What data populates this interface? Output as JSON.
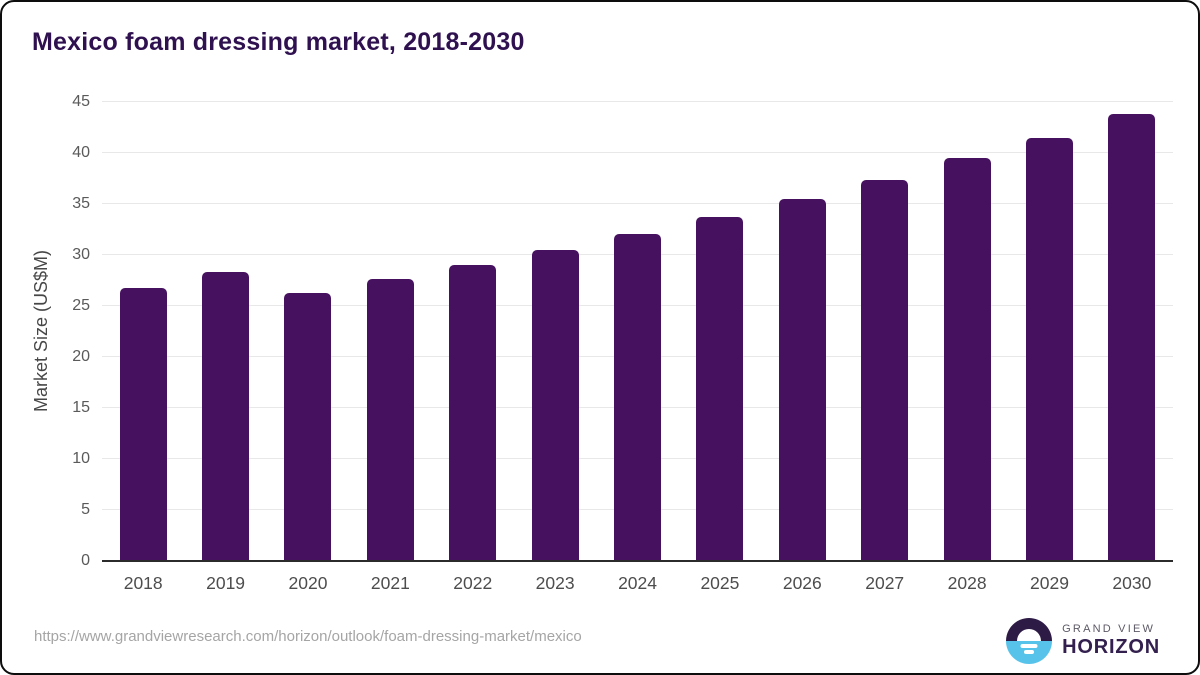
{
  "title": "Mexico foam dressing market, 2018-2030",
  "chart_data": {
    "type": "bar",
    "title": "Mexico foam dressing market, 2018-2030",
    "categories": [
      "2018",
      "2019",
      "2020",
      "2021",
      "2022",
      "2023",
      "2024",
      "2025",
      "2026",
      "2027",
      "2028",
      "2029",
      "2030"
    ],
    "values": [
      26.8,
      28.3,
      26.3,
      27.6,
      29.0,
      30.5,
      32.1,
      33.7,
      35.5,
      37.4,
      39.5,
      41.5,
      43.8
    ],
    "xlabel": "",
    "ylabel": "Market Size (US$M)",
    "ylim": [
      0,
      45
    ],
    "yticks": [
      0,
      5,
      10,
      15,
      20,
      25,
      30,
      35,
      40,
      45
    ],
    "grid": true,
    "legend": "none",
    "bar_color": "#46115f"
  },
  "colors": {
    "bar": "#46115f",
    "title_text": "#2f1150",
    "axis_text": "#4d4d4d",
    "gridline": "#e8e8e8",
    "axis_line": "#2b2b2b",
    "url_text": "#a5a5a5",
    "logo_purple": "#2d1a45",
    "logo_blue": "#58c3ea",
    "card_border": "#0d0d0d"
  },
  "footer": {
    "source_url": "https://www.grandviewresearch.com/horizon/outlook/foam-dressing-market/mexico",
    "logo": {
      "line1": "GRAND VIEW",
      "line2": "HORIZON"
    }
  }
}
